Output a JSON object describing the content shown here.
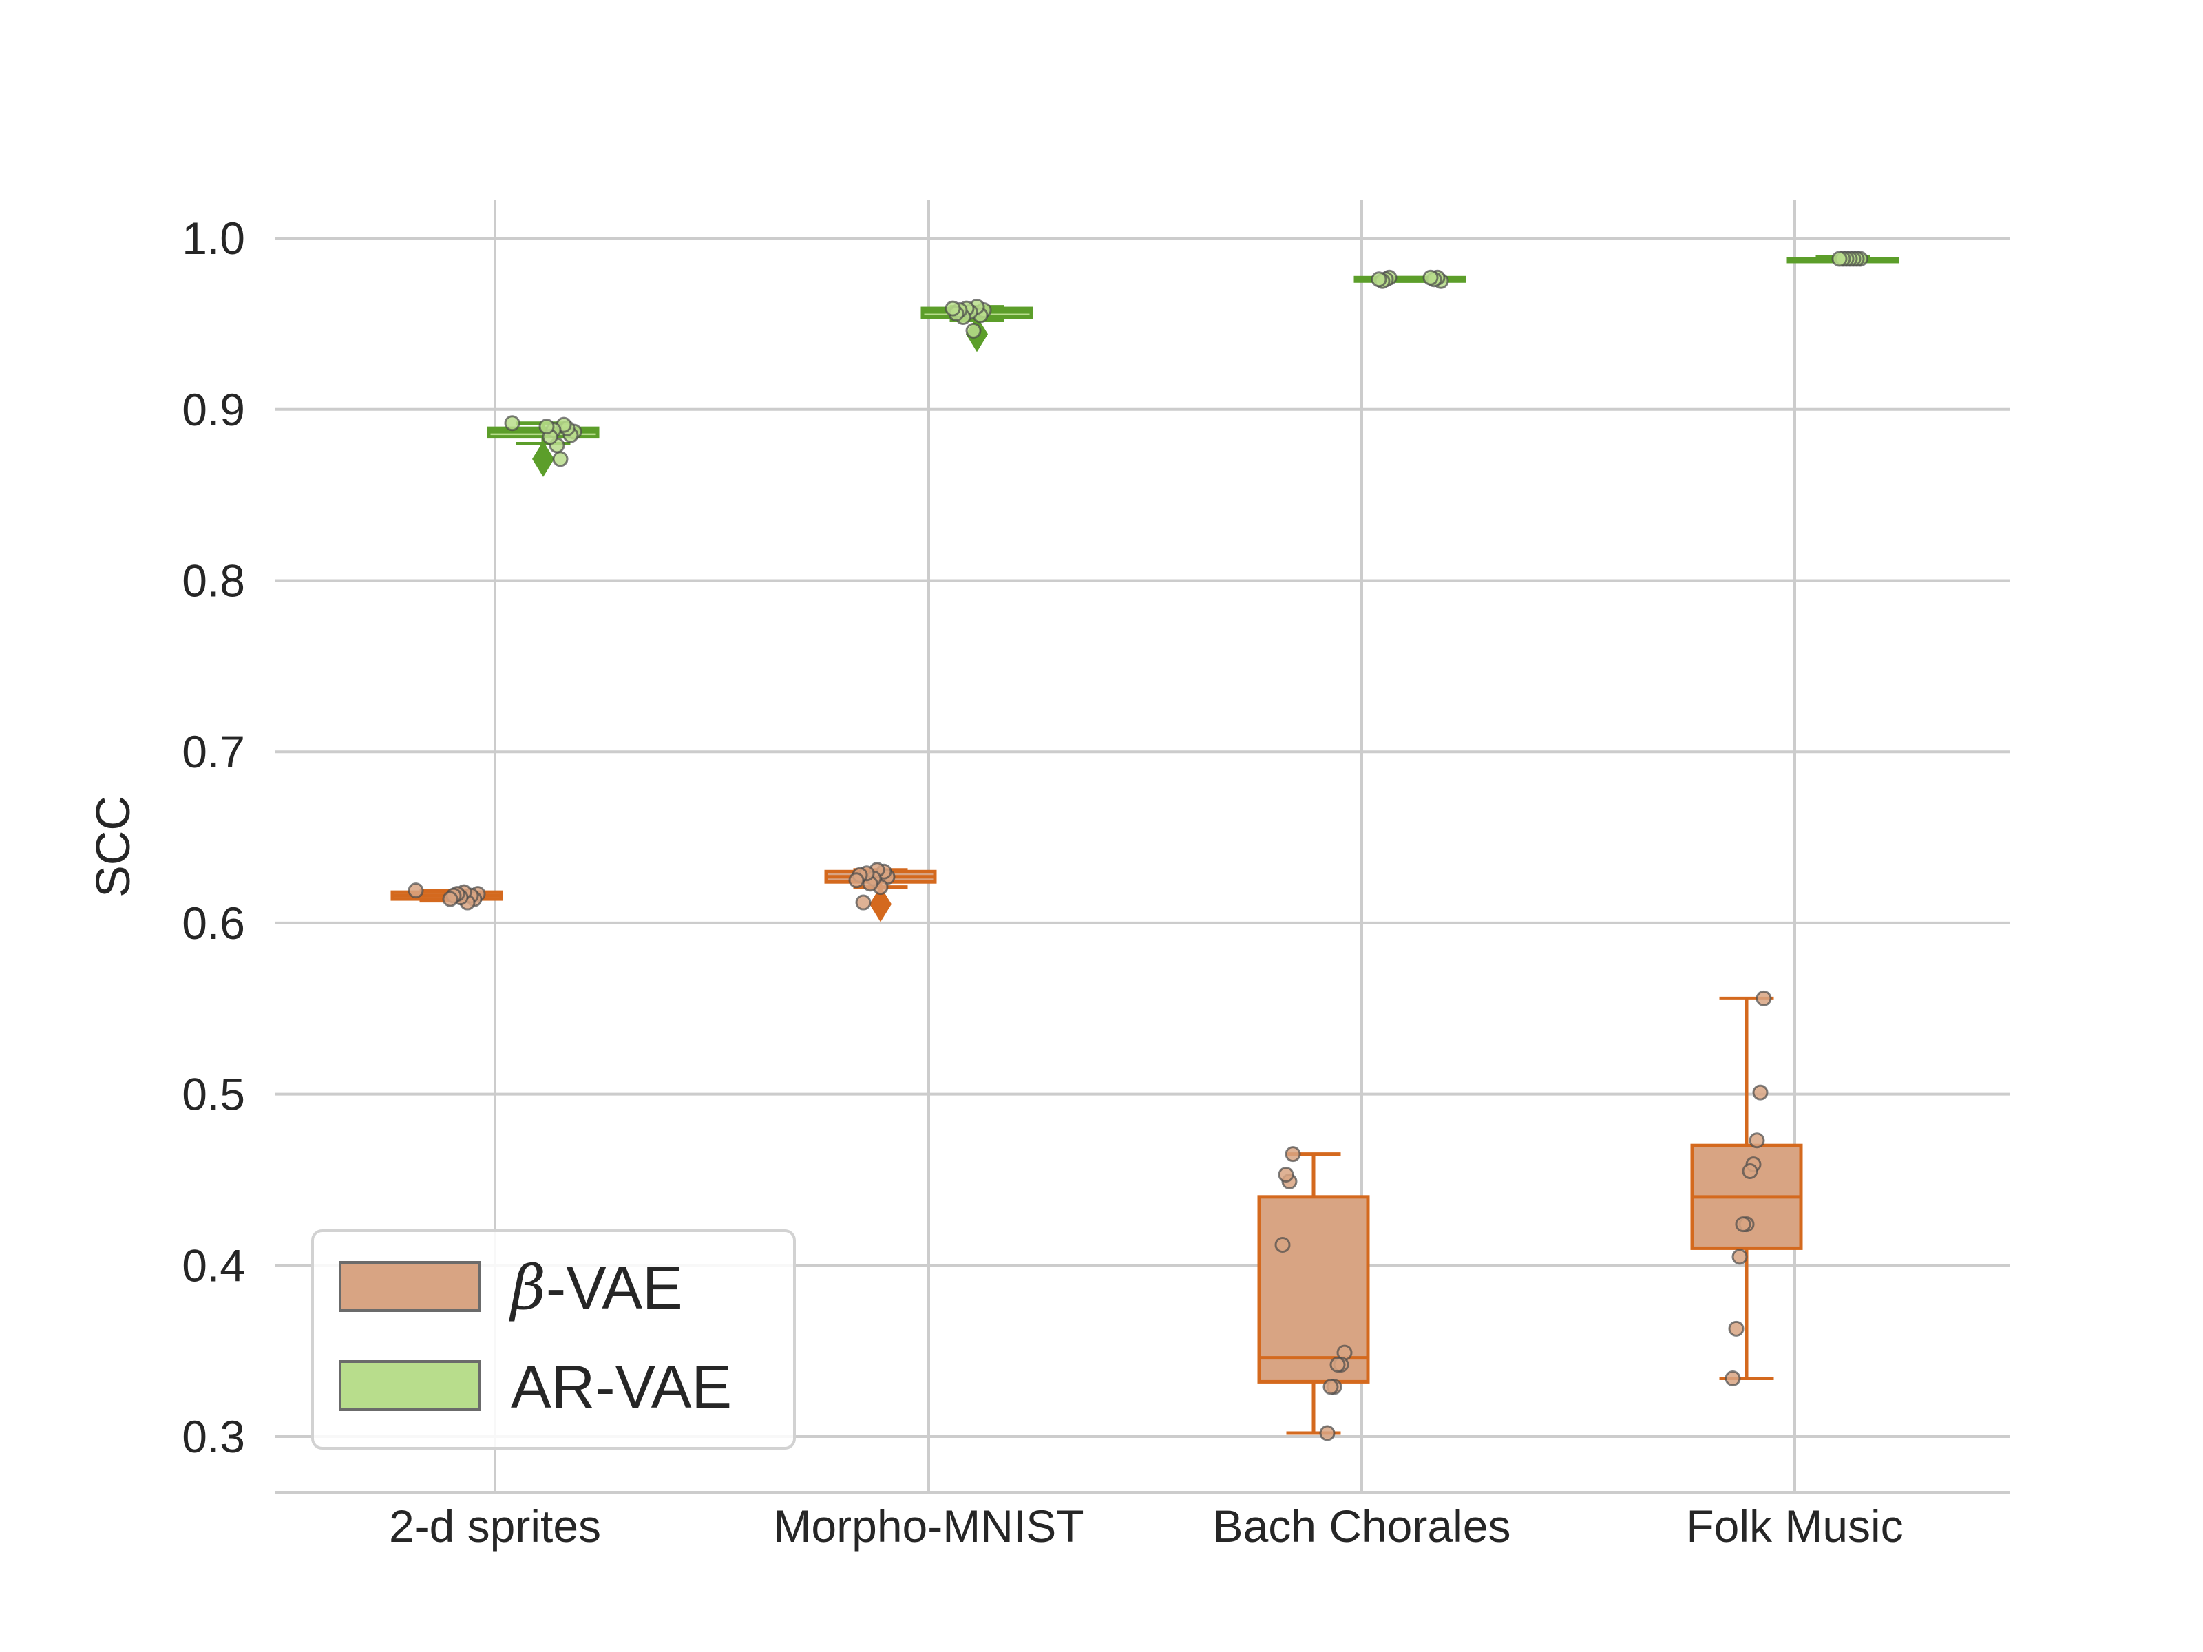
{
  "chart_data": {
    "type": "box",
    "title": "",
    "xlabel": "",
    "ylabel": "SCC",
    "ylim": [
      0.267,
      1.022
    ],
    "yticks": [
      0.3,
      0.4,
      0.5,
      0.6,
      0.7,
      0.8,
      0.9,
      1.0
    ],
    "ytick_labels": [
      "0.3",
      "0.4",
      "0.5",
      "0.6",
      "0.7",
      "0.8",
      "0.9",
      "1.0"
    ],
    "grid": true,
    "legend_position": "lower-left",
    "categories": [
      "2-d sprites",
      "Morpho-MNIST",
      "Bach Chorales",
      "Folk Music"
    ],
    "series": [
      {
        "name": "β-VAE",
        "legend_label": "-VAE",
        "legend_symbol": "β",
        "color": "#d4691e",
        "fill": "#d8a483",
        "boxes": [
          {
            "category": "2-d sprites",
            "whislo": 0.613,
            "q1": 0.614,
            "med": 0.616,
            "q3": 0.618,
            "whishi": 0.619,
            "fliers": []
          },
          {
            "category": "Morpho-MNIST",
            "whislo": 0.621,
            "q1": 0.624,
            "med": 0.627,
            "q3": 0.63,
            "whishi": 0.631,
            "fliers": [
              0.611
            ]
          },
          {
            "category": "Bach Chorales",
            "whislo": 0.302,
            "q1": 0.332,
            "med": 0.346,
            "q3": 0.44,
            "whishi": 0.465,
            "fliers": []
          },
          {
            "category": "Folk Music",
            "whislo": 0.334,
            "q1": 0.41,
            "med": 0.44,
            "q3": 0.47,
            "whishi": 0.556,
            "fliers": []
          }
        ],
        "points": [
          [
            0.619,
            0.617,
            0.614,
            0.616,
            0.612,
            0.618,
            0.615,
            0.617,
            0.616,
            0.614
          ],
          [
            0.627,
            0.63,
            0.621,
            0.631,
            0.626,
            0.623,
            0.629,
            0.612,
            0.628,
            0.625
          ],
          [
            0.465,
            0.449,
            0.453,
            0.412,
            0.349,
            0.342,
            0.342,
            0.329,
            0.329,
            0.302
          ],
          [
            0.556,
            0.501,
            0.473,
            0.459,
            0.455,
            0.424,
            0.424,
            0.405,
            0.363,
            0.334
          ]
        ]
      },
      {
        "name": "AR-VAE",
        "legend_label": "AR-VAE",
        "color": "#5c9e2a",
        "fill": "#b8dd8c",
        "boxes": [
          {
            "category": "2-d sprites",
            "whislo": 0.88,
            "q1": 0.884,
            "med": 0.887,
            "q3": 0.889,
            "whishi": 0.892,
            "fliers": [
              0.871
            ]
          },
          {
            "category": "Morpho-MNIST",
            "whislo": 0.952,
            "q1": 0.954,
            "med": 0.957,
            "q3": 0.959,
            "whishi": 0.96,
            "fliers": [
              0.944
            ]
          },
          {
            "category": "Bach Chorales",
            "whislo": 0.975,
            "q1": 0.975,
            "med": 0.976,
            "q3": 0.977,
            "whishi": 0.977,
            "fliers": []
          },
          {
            "category": "Folk Music",
            "whislo": 0.987,
            "q1": 0.988,
            "med": 0.988,
            "q3": 0.988,
            "whishi": 0.989,
            "fliers": []
          }
        ],
        "points": [
          [
            0.892,
            0.887,
            0.885,
            0.889,
            0.891,
            0.871,
            0.879,
            0.888,
            0.884,
            0.89
          ],
          [
            0.958,
            0.955,
            0.96,
            0.946,
            0.957,
            0.959,
            0.954,
            0.958,
            0.956,
            0.959
          ],
          [
            0.977,
            0.976,
            0.975,
            0.976,
            0.975,
            0.977,
            0.976,
            0.977
          ],
          [
            0.988,
            0.988,
            0.988,
            0.988,
            0.988,
            0.988,
            0.988
          ]
        ]
      }
    ]
  }
}
